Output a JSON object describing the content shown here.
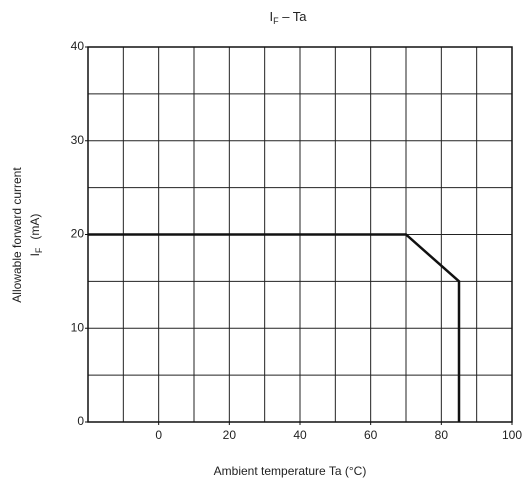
{
  "chart_data": {
    "type": "line",
    "title": {
      "symbol": "I",
      "subscript": "F",
      "rest": " – Ta"
    },
    "y_label": {
      "line1": "Allowable forward current",
      "symbol": "I",
      "subscript": "F",
      "unit": "(mA)"
    },
    "x_label": "Ambient temperature   Ta   (°C)",
    "x": [
      -20,
      70,
      85,
      85
    ],
    "series": [
      {
        "name": "IF",
        "color": "#111111",
        "values": [
          20,
          20,
          15,
          0
        ]
      }
    ],
    "xlim": [
      -20,
      100
    ],
    "ylim": [
      0,
      40
    ],
    "xticks": [
      0,
      20,
      40,
      60,
      80,
      100
    ],
    "yticks": [
      0,
      10,
      20,
      30,
      40
    ],
    "x_grid": [
      -20,
      -10,
      0,
      10,
      20,
      30,
      40,
      50,
      60,
      70,
      80,
      90,
      100
    ],
    "y_grid": [
      0,
      5,
      10,
      15,
      20,
      25,
      30,
      35,
      40
    ],
    "grid": true
  }
}
